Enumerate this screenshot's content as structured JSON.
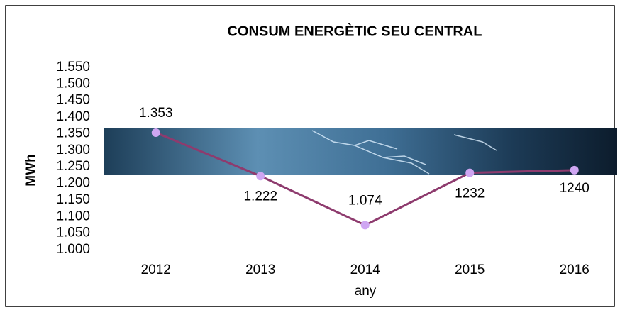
{
  "chart_data": {
    "type": "line",
    "title": "CONSUM ENERGÈTIC SEU CENTRAL",
    "y_label": "MWh",
    "x_label": "any",
    "categories": [
      "2012",
      "2013",
      "2014",
      "2015",
      "2016"
    ],
    "series": [
      {
        "name": "MWh",
        "color": "#8e3b6e",
        "marker_color": "#cfa6f2",
        "values": [
          1353,
          1222,
          1074,
          1232,
          1240
        ],
        "value_labels": [
          "1.353",
          "1.222",
          "1.074",
          "1232",
          "1240"
        ]
      }
    ],
    "ylim": [
      1000,
      1550
    ],
    "yticks": [
      {
        "value": 1000,
        "label": "1.000"
      },
      {
        "value": 1050,
        "label": "1.050"
      },
      {
        "value": 1100,
        "label": "1.100"
      },
      {
        "value": 1150,
        "label": "1.150"
      },
      {
        "value": 1200,
        "label": "1.200"
      },
      {
        "value": 1250,
        "label": "1.250"
      },
      {
        "value": 1300,
        "label": "1.300"
      },
      {
        "value": 1350,
        "label": "1.350"
      },
      {
        "value": 1400,
        "label": "1.400"
      },
      {
        "value": 1450,
        "label": "1.450"
      },
      {
        "value": 1500,
        "label": "1.500"
      },
      {
        "value": 1550,
        "label": "1.550"
      }
    ],
    "grid": false
  }
}
